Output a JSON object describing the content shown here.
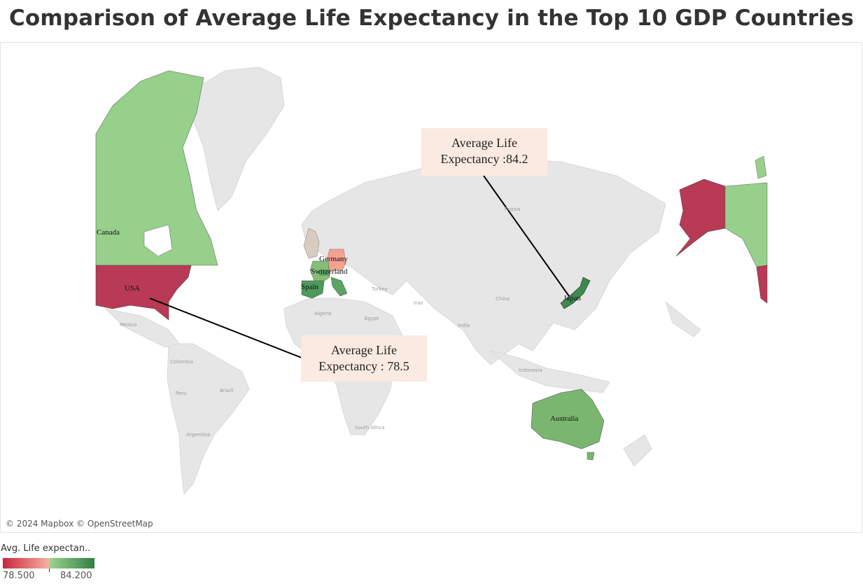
{
  "title": "Comparison of Average Life Expectancy in the Top 10 GDP Countries",
  "map": {
    "attribution": "© 2024 Mapbox © OpenStreetMap",
    "basemap_labels": [
      "Russia",
      "China",
      "India",
      "Iran",
      "Turkey",
      "Egypt",
      "Algeria",
      "Indonesia",
      "Mexico",
      "Colombia",
      "Brazil",
      "Peru",
      "Argentina",
      "South Africa"
    ],
    "countries": [
      {
        "name": "Canada",
        "label": "Canada",
        "color": "#96d08a"
      },
      {
        "name": "USA",
        "label": "USA",
        "color": "#b83a55"
      },
      {
        "name": "United Kingdom",
        "label": "",
        "color": "#d8ccc0"
      },
      {
        "name": "Germany",
        "label": "Germany",
        "color": "#f3a292"
      },
      {
        "name": "Switzerland",
        "label": "Switzerland",
        "color": "#5aa465"
      },
      {
        "name": "Spain",
        "label": "Spain",
        "color": "#4e9a5c"
      },
      {
        "name": "Italy",
        "label": "",
        "color": "#5aa465"
      },
      {
        "name": "France",
        "label": "",
        "color": "#84be79"
      },
      {
        "name": "Japan",
        "label": "Japan",
        "color": "#3d8a50"
      },
      {
        "name": "Australia",
        "label": "Australia",
        "color": "#7ab66f"
      }
    ],
    "callouts": [
      {
        "line1": "Average Life",
        "line2": "Expectancy :84.2",
        "country": "Japan"
      },
      {
        "line1": "Average Life",
        "line2": "Expectancy : 78.5",
        "country": "USA"
      }
    ]
  },
  "legend": {
    "title": "Avg. Life expectan..",
    "min": "78.500",
    "max": "84.200",
    "colors": [
      "#c8273f",
      "#f5b09f",
      "#9bd28d",
      "#2e7f45"
    ]
  }
}
